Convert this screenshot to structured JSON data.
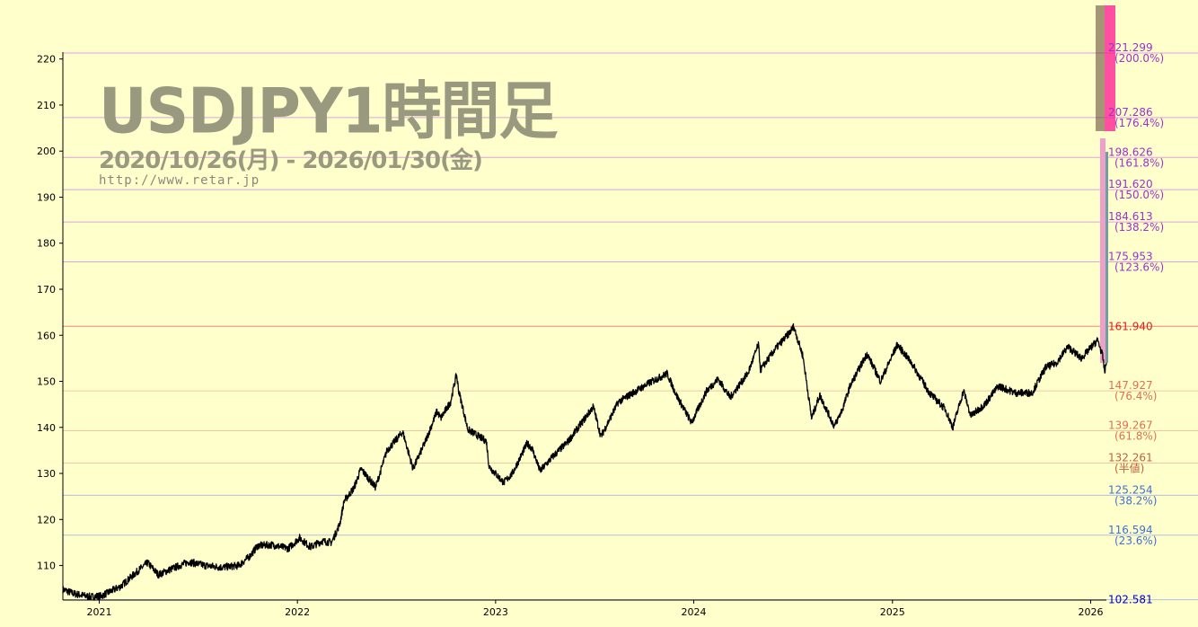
{
  "colors": {
    "background": "#ffffcc",
    "title": "#999980",
    "price_line": "#000000",
    "level_above": "#9933cc",
    "level_above_line": "#e0a0e0",
    "level_current": "#e02020",
    "level_current_line": "#f08080",
    "level_below_warm": "#e07050",
    "level_below_warm_line": "#f0c8a0",
    "level_mid": "#c06040",
    "level_below_cool": "#4070d0",
    "level_below_cool_line": "#b0c0e0",
    "level_low": "#0000cc",
    "date_text_dark": "#4a3a2a",
    "date_text_pink": "#ff1493"
  },
  "header": {
    "title": "USDJPY1時間足",
    "period": "2020/10/26(月) - 2026/01/30(金)",
    "url": "http://www.retar.jp"
  },
  "chart_data": {
    "type": "line",
    "title": "USDJPY1時間足",
    "subtitle": "2020/10/26(月) - 2026/01/30(金)",
    "xlabel": "",
    "ylabel": "",
    "ylim": [
      102.5,
      221.5
    ],
    "grid": false,
    "y_ticks": [
      "110",
      "120",
      "130",
      "140",
      "150",
      "160",
      "170",
      "180",
      "190",
      "200",
      "210",
      "220"
    ],
    "x_ticks": [
      "2021",
      "2022",
      "2023",
      "2024",
      "2025",
      "2026"
    ],
    "series": [
      {
        "name": "",
        "x": [
          "2020-10-26",
          "2020-11-15",
          "2020-12-15",
          "2021-01-05",
          "2021-02-10",
          "2021-03-10",
          "2021-03-31",
          "2021-04-20",
          "2021-05-15",
          "2021-06-15",
          "2021-07-15",
          "2021-08-15",
          "2021-09-15",
          "2021-10-05",
          "2021-10-20",
          "2021-11-15",
          "2021-12-15",
          "2022-01-05",
          "2022-01-25",
          "2022-02-15",
          "2022-03-05",
          "2022-03-20",
          "2022-03-28",
          "2022-04-15",
          "2022-04-28",
          "2022-05-25",
          "2022-06-15",
          "2022-07-14",
          "2022-08-02",
          "2022-08-25",
          "2022-09-15",
          "2022-09-22",
          "2022-10-10",
          "2022-10-21",
          "2022-10-25",
          "2022-11-11",
          "2022-11-25",
          "2022-12-15",
          "2022-12-20",
          "2023-01-16",
          "2023-02-01",
          "2023-02-28",
          "2023-03-09",
          "2023-03-24",
          "2023-04-15",
          "2023-05-15",
          "2023-06-30",
          "2023-07-14",
          "2023-08-15",
          "2023-09-15",
          "2023-10-15",
          "2023-11-13",
          "2023-11-30",
          "2023-12-28",
          "2024-01-25",
          "2024-02-15",
          "2024-03-08",
          "2024-04-10",
          "2024-04-29",
          "2024-05-03",
          "2024-05-30",
          "2024-06-25",
          "2024-07-03",
          "2024-07-20",
          "2024-08-05",
          "2024-08-20",
          "2024-09-16",
          "2024-10-01",
          "2024-10-15",
          "2024-11-15",
          "2024-12-10",
          "2025-01-10",
          "2025-02-05",
          "2025-03-10",
          "2025-04-08",
          "2025-04-22",
          "2025-05-12",
          "2025-05-25",
          "2025-06-20",
          "2025-07-15",
          "2025-08-15",
          "2025-09-15",
          "2025-10-10",
          "2025-10-30",
          "2025-11-20",
          "2025-12-15",
          "2026-01-14",
          "2026-01-23",
          "2026-01-27",
          "2026-01-30"
        ],
        "y": [
          104.8,
          103.9,
          103.2,
          103.4,
          105.5,
          108.5,
          110.6,
          108.0,
          109.3,
          110.8,
          110.0,
          109.6,
          110.0,
          112.0,
          114.3,
          114.5,
          113.7,
          116.0,
          114.0,
          115.3,
          115.0,
          119.0,
          124.0,
          126.8,
          131.0,
          127.0,
          135.0,
          139.0,
          131.0,
          137.0,
          143.5,
          142.0,
          145.5,
          151.5,
          148.0,
          139.5,
          138.5,
          137.0,
          131.5,
          128.0,
          130.0,
          136.5,
          135.5,
          130.5,
          133.5,
          137.0,
          144.5,
          138.0,
          145.5,
          147.8,
          149.9,
          151.7,
          147.0,
          141.0,
          148.0,
          150.5,
          146.5,
          151.8,
          158.0,
          152.5,
          157.0,
          160.5,
          161.9,
          155.5,
          142.0,
          147.0,
          140.2,
          144.0,
          149.0,
          156.0,
          150.0,
          158.0,
          154.0,
          147.5,
          144.0,
          140.0,
          148.0,
          142.5,
          145.0,
          149.0,
          147.5,
          147.5,
          153.0,
          154.0,
          157.5,
          155.0,
          159.0,
          155.5,
          152.0,
          154.0
        ]
      }
    ],
    "levels": [
      {
        "value": "221.299",
        "label": "(200.0%)",
        "tier": "above"
      },
      {
        "value": "207.286",
        "label": "(176.4%)",
        "tier": "above"
      },
      {
        "value": "198.626",
        "label": "(161.8%)",
        "tier": "above"
      },
      {
        "value": "191.620",
        "label": "(150.0%)",
        "tier": "above"
      },
      {
        "value": "184.613",
        "label": "(138.2%)",
        "tier": "above"
      },
      {
        "value": "175.953",
        "label": "(123.6%)",
        "tier": "above"
      },
      {
        "value": "161.940",
        "label": "",
        "tier": "current"
      },
      {
        "value": "147.927",
        "label": "(76.4%)",
        "tier": "warm"
      },
      {
        "value": "139.267",
        "label": "(61.8%)",
        "tier": "warm"
      },
      {
        "value": "132.261",
        "label": "(半値)",
        "tier": "mid"
      },
      {
        "value": "125.254",
        "label": "(38.2%)",
        "tier": "cool"
      },
      {
        "value": "116.594",
        "label": "(23.6%)",
        "tier": "cool"
      },
      {
        "value": "102.581",
        "label": "",
        "tier": "low"
      }
    ]
  }
}
